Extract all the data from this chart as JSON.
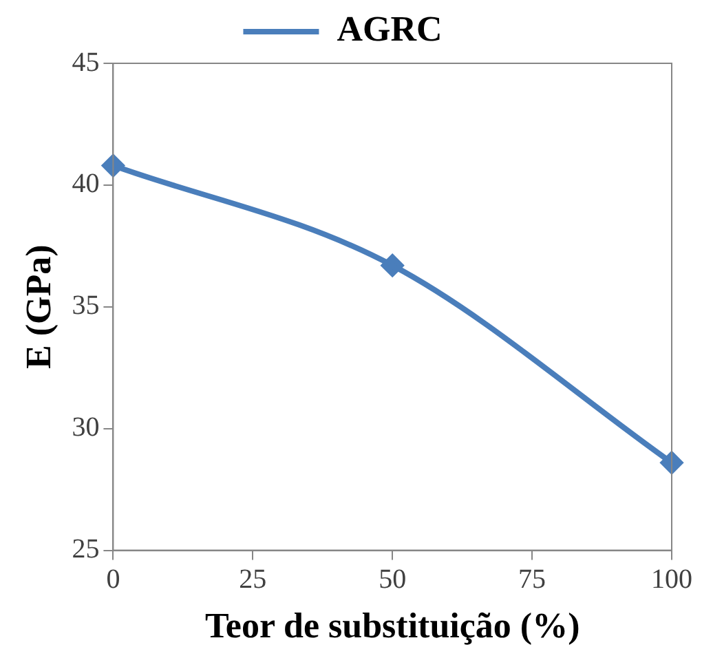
{
  "chart_data": {
    "type": "line",
    "xlabel": "Teor de substituição (%)",
    "ylabel": "E (GPa)",
    "x": [
      0,
      50,
      100
    ],
    "series": [
      {
        "name": "AGRC",
        "color": "#4a7ebb",
        "values": [
          40.8,
          36.7,
          28.6
        ]
      }
    ],
    "xlim": [
      0,
      100
    ],
    "xticks": [
      0,
      25,
      50,
      75,
      100
    ],
    "ylim": [
      25,
      45
    ],
    "yticks": [
      25,
      30,
      35,
      40,
      45
    ],
    "grid": false,
    "legend": "top",
    "marker": "diamond",
    "line_style": "solid"
  }
}
